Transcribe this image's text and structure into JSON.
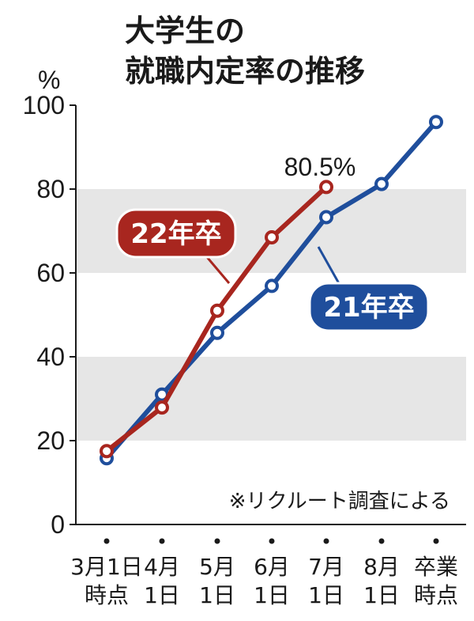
{
  "title": {
    "line1": "大学生の",
    "line2": "就職内定率の推移"
  },
  "chart_data": {
    "type": "line",
    "unit_label": "%",
    "ylim": [
      0,
      100
    ],
    "yticks": [
      0,
      20,
      40,
      60,
      80,
      100
    ],
    "categories": [
      [
        "3月1日",
        "時点"
      ],
      [
        "4月",
        "1日"
      ],
      [
        "5月",
        "1日"
      ],
      [
        "6月",
        "1日"
      ],
      [
        "7月",
        "1日"
      ],
      [
        "8月",
        "1日"
      ],
      [
        "卒業",
        "時点"
      ]
    ],
    "series": [
      {
        "name": "21年卒",
        "color": "#1f4e9c",
        "values": [
          15.8,
          31.0,
          45.7,
          56.9,
          73.3,
          81.2,
          96.0
        ]
      },
      {
        "name": "22年卒",
        "color": "#a8261f",
        "values": [
          17.5,
          27.9,
          51.0,
          68.5,
          80.5,
          null,
          null
        ]
      }
    ],
    "annotation": "80.5%",
    "source_note": "※リクルート調査による",
    "grid_bands": "alternating gray bands"
  }
}
